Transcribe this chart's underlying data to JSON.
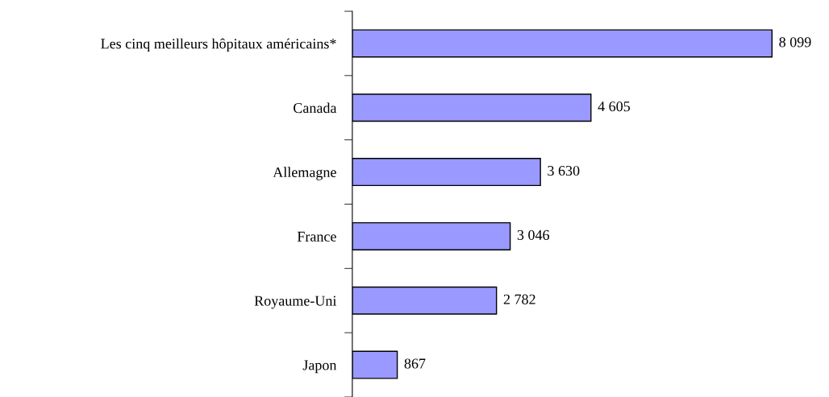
{
  "chart_data": {
    "type": "bar",
    "orientation": "horizontal",
    "categories": [
      "Les cinq meilleurs hôpitaux américains*",
      "Canada",
      "Allemagne",
      "France",
      "Royaume-Uni",
      "Japon"
    ],
    "values": [
      8099,
      4605,
      3630,
      3046,
      2782,
      867
    ],
    "value_labels": [
      "8 099",
      "4 605",
      "3 630",
      "3 046",
      "2 782",
      "867"
    ],
    "color": "#9999ff",
    "grid": false,
    "legend": false,
    "tick_labels": "y"
  }
}
